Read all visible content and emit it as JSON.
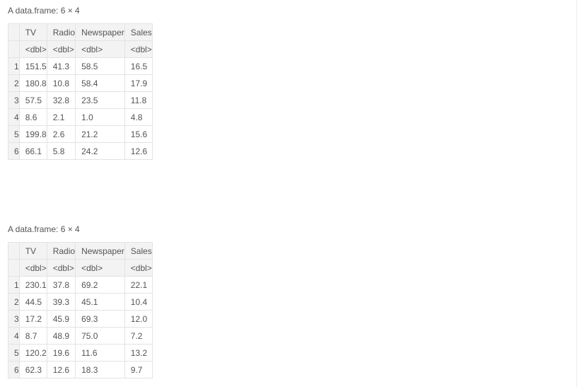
{
  "frames": [
    {
      "caption": "A data.frame: 6 × 4",
      "columns": [
        "TV",
        "Radio",
        "Newspaper",
        "Sales"
      ],
      "types": [
        "<dbl>",
        "<dbl>",
        "<dbl>",
        "<dbl>"
      ],
      "rows": [
        {
          "index": "1",
          "cells": [
            "151.5",
            "41.3",
            "58.5",
            "16.5"
          ]
        },
        {
          "index": "2",
          "cells": [
            "180.8",
            "10.8",
            "58.4",
            "17.9"
          ]
        },
        {
          "index": "3",
          "cells": [
            "57.5",
            "32.8",
            "23.5",
            "11.8"
          ]
        },
        {
          "index": "4",
          "cells": [
            "8.6",
            "2.1",
            "1.0",
            "4.8"
          ]
        },
        {
          "index": "5",
          "cells": [
            "199.8",
            "2.6",
            "21.2",
            "15.6"
          ]
        },
        {
          "index": "6",
          "cells": [
            "66.1",
            "5.8",
            "24.2",
            "12.6"
          ]
        }
      ]
    },
    {
      "caption": "A data.frame: 6 × 4",
      "columns": [
        "TV",
        "Radio",
        "Newspaper",
        "Sales"
      ],
      "types": [
        "<dbl>",
        "<dbl>",
        "<dbl>",
        "<dbl>"
      ],
      "rows": [
        {
          "index": "1",
          "cells": [
            "230.1",
            "37.8",
            "69.2",
            "22.1"
          ]
        },
        {
          "index": "2",
          "cells": [
            "44.5",
            "39.3",
            "45.1",
            "10.4"
          ]
        },
        {
          "index": "3",
          "cells": [
            "17.2",
            "45.9",
            "69.3",
            "12.0"
          ]
        },
        {
          "index": "4",
          "cells": [
            "8.7",
            "48.9",
            "75.0",
            "7.2"
          ]
        },
        {
          "index": "5",
          "cells": [
            "120.2",
            "19.6",
            "11.6",
            "13.2"
          ]
        },
        {
          "index": "6",
          "cells": [
            "62.3",
            "12.6",
            "18.3",
            "9.7"
          ]
        }
      ]
    }
  ]
}
